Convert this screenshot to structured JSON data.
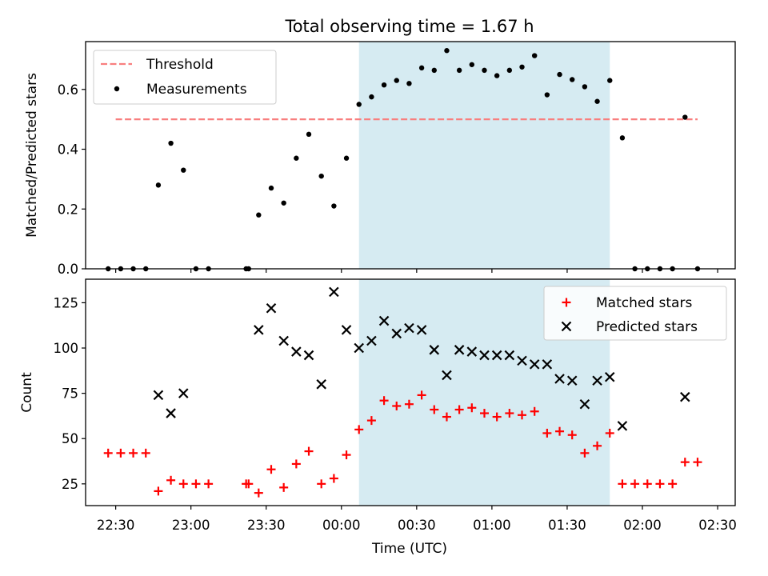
{
  "title": "Total observing time = 1.67 h",
  "xlabel": "Time (UTC)",
  "x_ticks": [
    "22:30",
    "23:00",
    "23:30",
    "00:00",
    "00:30",
    "01:00",
    "01:30",
    "02:00",
    "02:30"
  ],
  "colors": {
    "threshold": "#f87f7f",
    "measurement": "#000000",
    "matched": "#ff0000",
    "predicted": "#000000",
    "span": "#add8e6"
  },
  "chart_data": [
    {
      "type": "scatter",
      "ylabel": "Matched/Predicted stars",
      "xlim": [
        "22:18",
        "02:37"
      ],
      "ylim": [
        0,
        0.76
      ],
      "y_ticks": [
        "0.0",
        "0.2",
        "0.4",
        "0.6"
      ],
      "legend": {
        "position": "top-left",
        "entries": [
          "Threshold",
          "Measurements"
        ]
      },
      "shaded_span": [
        "00:07",
        "01:47"
      ],
      "threshold": {
        "name": "Threshold",
        "y": 0.5,
        "x": [
          "22:30",
          "02:22"
        ]
      },
      "series": [
        {
          "name": "Measurements",
          "points": [
            [
              "22:27",
              0.0
            ],
            [
              "22:32",
              0.0
            ],
            [
              "22:37",
              0.0
            ],
            [
              "22:42",
              0.0
            ],
            [
              "22:47",
              0.28
            ],
            [
              "22:52",
              0.42
            ],
            [
              "22:57",
              0.33
            ],
            [
              "23:02",
              0.0
            ],
            [
              "23:07",
              0.0
            ],
            [
              "23:22",
              0.0
            ],
            [
              "23:23",
              0.0
            ],
            [
              "23:27",
              0.18
            ],
            [
              "23:32",
              0.27
            ],
            [
              "23:37",
              0.22
            ],
            [
              "23:42",
              0.37
            ],
            [
              "23:47",
              0.45
            ],
            [
              "23:52",
              0.31
            ],
            [
              "23:57",
              0.21
            ],
            [
              "00:02",
              0.37
            ],
            [
              "00:07",
              0.55
            ],
            [
              "00:12",
              0.575
            ],
            [
              "00:17",
              0.615
            ],
            [
              "00:22",
              0.63
            ],
            [
              "00:27",
              0.62
            ],
            [
              "00:32",
              0.672
            ],
            [
              "00:37",
              0.664
            ],
            [
              "00:42",
              0.73
            ],
            [
              "00:47",
              0.664
            ],
            [
              "00:52",
              0.683
            ],
            [
              "00:57",
              0.664
            ],
            [
              "01:02",
              0.646
            ],
            [
              "01:07",
              0.664
            ],
            [
              "01:12",
              0.675
            ],
            [
              "01:17",
              0.713
            ],
            [
              "01:22",
              0.582
            ],
            [
              "01:27",
              0.65
            ],
            [
              "01:32",
              0.633
            ],
            [
              "01:37",
              0.609
            ],
            [
              "01:42",
              0.56
            ],
            [
              "01:47",
              0.63
            ],
            [
              "01:52",
              0.438
            ],
            [
              "01:57",
              0.0
            ],
            [
              "02:02",
              0.0
            ],
            [
              "02:07",
              0.0
            ],
            [
              "02:12",
              0.0
            ],
            [
              "02:17",
              0.507
            ],
            [
              "02:22",
              0.0
            ]
          ]
        }
      ]
    },
    {
      "type": "scatter",
      "ylabel": "Count",
      "xlabel": "Time (UTC)",
      "xlim": [
        "22:18",
        "02:37"
      ],
      "ylim": [
        13,
        138
      ],
      "y_ticks": [
        25,
        50,
        75,
        100,
        125
      ],
      "legend": {
        "position": "top-right",
        "entries": [
          "Matched stars",
          "Predicted stars"
        ]
      },
      "shaded_span": [
        "00:07",
        "01:47"
      ],
      "series": [
        {
          "name": "Matched stars",
          "marker": "+",
          "points": [
            [
              "22:27",
              42
            ],
            [
              "22:32",
              42
            ],
            [
              "22:37",
              42
            ],
            [
              "22:42",
              42
            ],
            [
              "22:47",
              21
            ],
            [
              "22:52",
              27
            ],
            [
              "22:57",
              25
            ],
            [
              "23:02",
              25
            ],
            [
              "23:07",
              25
            ],
            [
              "23:22",
              25
            ],
            [
              "23:23",
              25
            ],
            [
              "23:27",
              20
            ],
            [
              "23:32",
              33
            ],
            [
              "23:37",
              23
            ],
            [
              "23:42",
              36
            ],
            [
              "23:47",
              43
            ],
            [
              "23:52",
              25
            ],
            [
              "23:57",
              28
            ],
            [
              "00:02",
              41
            ],
            [
              "00:07",
              55
            ],
            [
              "00:12",
              60
            ],
            [
              "00:17",
              71
            ],
            [
              "00:22",
              68
            ],
            [
              "00:27",
              69
            ],
            [
              "00:32",
              74
            ],
            [
              "00:37",
              66
            ],
            [
              "00:42",
              62
            ],
            [
              "00:47",
              66
            ],
            [
              "00:52",
              67
            ],
            [
              "00:57",
              64
            ],
            [
              "01:02",
              62
            ],
            [
              "01:07",
              64
            ],
            [
              "01:12",
              63
            ],
            [
              "01:17",
              65
            ],
            [
              "01:22",
              53
            ],
            [
              "01:27",
              54
            ],
            [
              "01:32",
              52
            ],
            [
              "01:37",
              42
            ],
            [
              "01:42",
              46
            ],
            [
              "01:47",
              53
            ],
            [
              "01:52",
              25
            ],
            [
              "01:57",
              25
            ],
            [
              "02:02",
              25
            ],
            [
              "02:07",
              25
            ],
            [
              "02:12",
              25
            ],
            [
              "02:17",
              37
            ],
            [
              "02:22",
              37
            ]
          ]
        },
        {
          "name": "Predicted stars",
          "marker": "x",
          "points": [
            [
              "22:47",
              74
            ],
            [
              "22:52",
              64
            ],
            [
              "22:57",
              75
            ],
            [
              "23:27",
              110
            ],
            [
              "23:32",
              122
            ],
            [
              "23:37",
              104
            ],
            [
              "23:42",
              98
            ],
            [
              "23:47",
              96
            ],
            [
              "23:52",
              80
            ],
            [
              "23:57",
              131
            ],
            [
              "00:02",
              110
            ],
            [
              "00:07",
              100
            ],
            [
              "00:12",
              104
            ],
            [
              "00:17",
              115
            ],
            [
              "00:22",
              108
            ],
            [
              "00:27",
              111
            ],
            [
              "00:32",
              110
            ],
            [
              "00:37",
              99
            ],
            [
              "00:42",
              85
            ],
            [
              "00:47",
              99
            ],
            [
              "00:52",
              98
            ],
            [
              "00:57",
              96
            ],
            [
              "01:02",
              96
            ],
            [
              "01:07",
              96
            ],
            [
              "01:12",
              93
            ],
            [
              "01:17",
              91
            ],
            [
              "01:22",
              91
            ],
            [
              "01:27",
              83
            ],
            [
              "01:32",
              82
            ],
            [
              "01:37",
              69
            ],
            [
              "01:42",
              82
            ],
            [
              "01:47",
              84
            ],
            [
              "01:52",
              57
            ],
            [
              "02:17",
              73
            ]
          ]
        }
      ]
    }
  ]
}
